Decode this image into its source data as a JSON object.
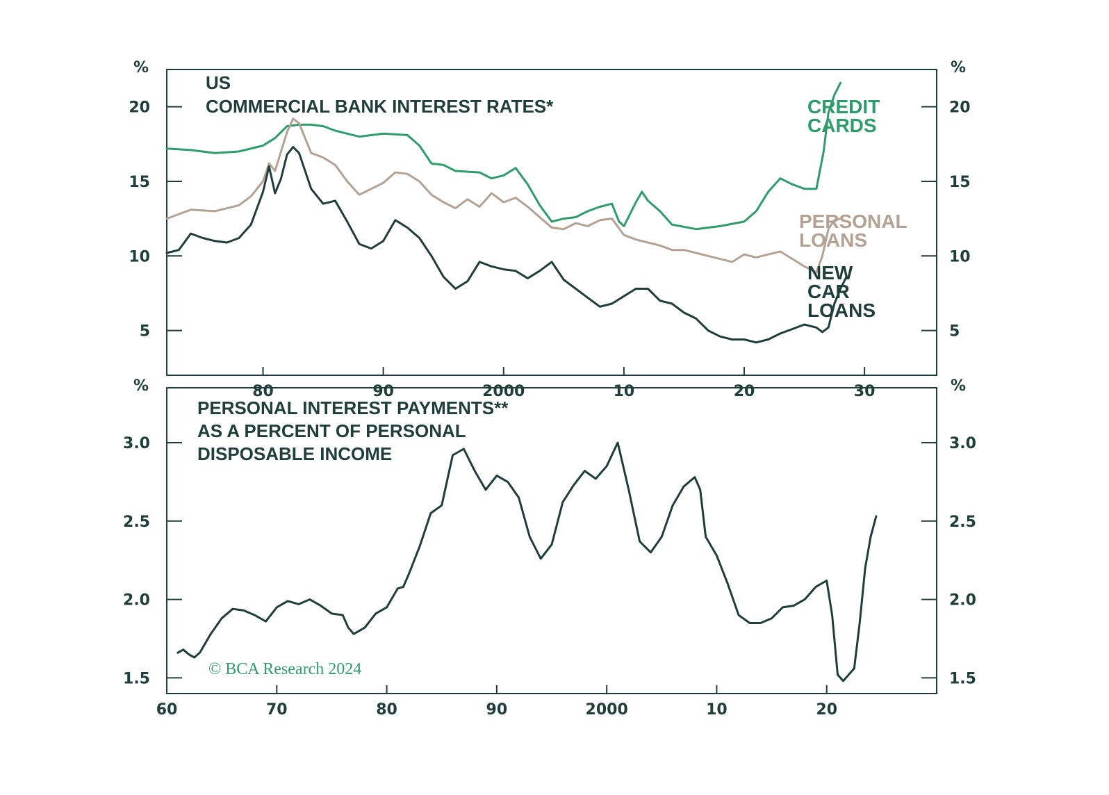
{
  "colors": {
    "ink": "#1f3d3a",
    "credit": "#2e9b6b",
    "personal": "#b3a293",
    "car": "#1f3d3a"
  },
  "credit_text": "© BCA Research 2024",
  "chart_data": [
    {
      "type": "line",
      "title_lines": [
        "US",
        "COMMERCIAL BANK INTEREST RATES*"
      ],
      "unit": "%",
      "ylim": [
        2,
        22.5
      ],
      "yticks": [
        5,
        10,
        15,
        20
      ],
      "xlim": [
        1972,
        2036
      ],
      "xtick_positions": [
        1980,
        1990,
        2000,
        2010,
        2020,
        2030
      ],
      "xtick_labels": [
        "80",
        "90",
        "2000",
        "10",
        "20",
        "30"
      ],
      "series": [
        {
          "name": "CREDIT CARDS",
          "label_lines": [
            "CREDIT",
            "CARDS"
          ],
          "color_key": "credit",
          "points": [
            [
              1972,
              17.2
            ],
            [
              1974,
              17.1
            ],
            [
              1976,
              16.9
            ],
            [
              1978,
              17.0
            ],
            [
              1980,
              17.4
            ],
            [
              1981,
              17.9
            ],
            [
              1982,
              18.7
            ],
            [
              1983,
              18.8
            ],
            [
              1984,
              18.8
            ],
            [
              1985,
              18.7
            ],
            [
              1986,
              18.4
            ],
            [
              1988,
              18.0
            ],
            [
              1990,
              18.2
            ],
            [
              1992,
              18.1
            ],
            [
              1993,
              17.4
            ],
            [
              1994,
              16.2
            ],
            [
              1995,
              16.1
            ],
            [
              1996,
              15.7
            ],
            [
              1998,
              15.6
            ],
            [
              1999,
              15.2
            ],
            [
              2000,
              15.4
            ],
            [
              2001,
              15.9
            ],
            [
              2002,
              14.8
            ],
            [
              2003,
              13.4
            ],
            [
              2004,
              12.3
            ],
            [
              2005,
              12.5
            ],
            [
              2006,
              12.6
            ],
            [
              2007,
              13.0
            ],
            [
              2008,
              13.3
            ],
            [
              2009,
              13.5
            ],
            [
              2009.6,
              12.3
            ],
            [
              2010,
              12.0
            ],
            [
              2011,
              13.6
            ],
            [
              2011.5,
              14.3
            ],
            [
              2012,
              13.7
            ],
            [
              2013,
              13.0
            ],
            [
              2014,
              12.1
            ],
            [
              2016,
              11.8
            ],
            [
              2018,
              12.0
            ],
            [
              2020,
              12.3
            ],
            [
              2021,
              13.0
            ],
            [
              2022,
              14.3
            ],
            [
              2023,
              15.2
            ],
            [
              2024,
              14.8
            ],
            [
              2025,
              14.5
            ],
            [
              2026,
              14.5
            ],
            [
              2026.6,
              17.0
            ],
            [
              2027,
              19.6
            ],
            [
              2027.5,
              20.8
            ],
            [
              2028,
              21.6
            ]
          ]
        },
        {
          "name": "PERSONAL LOANS",
          "label_lines": [
            "PERSONAL",
            "LOANS"
          ],
          "color_key": "personal",
          "points": [
            [
              1972,
              12.5
            ],
            [
              1974,
              13.1
            ],
            [
              1976,
              13.0
            ],
            [
              1978,
              13.4
            ],
            [
              1979,
              14.0
            ],
            [
              1980,
              15.0
            ],
            [
              1980.5,
              16.2
            ],
            [
              1981,
              15.7
            ],
            [
              1982,
              18.3
            ],
            [
              1982.5,
              19.2
            ],
            [
              1983,
              18.9
            ],
            [
              1984,
              16.9
            ],
            [
              1985,
              16.6
            ],
            [
              1986,
              16.1
            ],
            [
              1987,
              15.0
            ],
            [
              1988,
              14.1
            ],
            [
              1989,
              14.5
            ],
            [
              1990,
              14.9
            ],
            [
              1991,
              15.6
            ],
            [
              1992,
              15.5
            ],
            [
              1993,
              15.0
            ],
            [
              1994,
              14.1
            ],
            [
              1995,
              13.6
            ],
            [
              1996,
              13.2
            ],
            [
              1997,
              13.8
            ],
            [
              1998,
              13.3
            ],
            [
              1999,
              14.2
            ],
            [
              2000,
              13.6
            ],
            [
              2001,
              13.9
            ],
            [
              2002,
              13.3
            ],
            [
              2003,
              12.6
            ],
            [
              2004,
              11.9
            ],
            [
              2005,
              11.8
            ],
            [
              2006,
              12.2
            ],
            [
              2007,
              12.0
            ],
            [
              2008,
              12.4
            ],
            [
              2009,
              12.5
            ],
            [
              2010,
              11.4
            ],
            [
              2011,
              11.1
            ],
            [
              2012,
              10.9
            ],
            [
              2013,
              10.7
            ],
            [
              2014,
              10.4
            ],
            [
              2015,
              10.4
            ],
            [
              2016,
              10.2
            ],
            [
              2017,
              10.0
            ],
            [
              2018,
              9.8
            ],
            [
              2019,
              9.6
            ],
            [
              2020,
              10.1
            ],
            [
              2021,
              9.9
            ],
            [
              2022,
              10.1
            ],
            [
              2023,
              10.3
            ],
            [
              2024,
              9.8
            ],
            [
              2025,
              9.3
            ],
            [
              2026,
              8.9
            ],
            [
              2026.5,
              10.0
            ],
            [
              2027,
              11.8
            ],
            [
              2027.5,
              12.4
            ],
            [
              2028,
              12.5
            ]
          ]
        },
        {
          "name": "NEW CAR LOANS",
          "label_lines": [
            "NEW",
            "CAR",
            "LOANS"
          ],
          "color_key": "car",
          "points": [
            [
              1972,
              10.2
            ],
            [
              1973,
              10.4
            ],
            [
              1974,
              11.5
            ],
            [
              1975,
              11.2
            ],
            [
              1976,
              11.0
            ],
            [
              1977,
              10.9
            ],
            [
              1978,
              11.2
            ],
            [
              1979,
              12.1
            ],
            [
              1980,
              14.3
            ],
            [
              1980.5,
              16.0
            ],
            [
              1981,
              14.2
            ],
            [
              1981.5,
              15.2
            ],
            [
              1982,
              16.8
            ],
            [
              1982.5,
              17.3
            ],
            [
              1983,
              16.9
            ],
            [
              1984,
              14.5
            ],
            [
              1985,
              13.5
            ],
            [
              1986,
              13.7
            ],
            [
              1987,
              12.3
            ],
            [
              1988,
              10.8
            ],
            [
              1989,
              10.5
            ],
            [
              1990,
              11.0
            ],
            [
              1991,
              12.4
            ],
            [
              1992,
              11.9
            ],
            [
              1993,
              11.2
            ],
            [
              1994,
              10.0
            ],
            [
              1995,
              8.6
            ],
            [
              1996,
              7.8
            ],
            [
              1997,
              8.3
            ],
            [
              1998,
              9.6
            ],
            [
              1999,
              9.3
            ],
            [
              2000,
              9.1
            ],
            [
              2001,
              9.0
            ],
            [
              2002,
              8.5
            ],
            [
              2003,
              9.0
            ],
            [
              2004,
              9.6
            ],
            [
              2005,
              8.4
            ],
            [
              2006,
              7.8
            ],
            [
              2007,
              7.2
            ],
            [
              2008,
              6.6
            ],
            [
              2009,
              6.8
            ],
            [
              2010,
              7.3
            ],
            [
              2011,
              7.8
            ],
            [
              2012,
              7.8
            ],
            [
              2013,
              7.0
            ],
            [
              2014,
              6.8
            ],
            [
              2015,
              6.2
            ],
            [
              2016,
              5.8
            ],
            [
              2017,
              5.0
            ],
            [
              2018,
              4.6
            ],
            [
              2019,
              4.4
            ],
            [
              2020,
              4.4
            ],
            [
              2021,
              4.2
            ],
            [
              2022,
              4.4
            ],
            [
              2023,
              4.8
            ],
            [
              2024,
              5.1
            ],
            [
              2025,
              5.4
            ],
            [
              2026,
              5.2
            ],
            [
              2026.5,
              4.9
            ],
            [
              2027,
              5.2
            ],
            [
              2027.5,
              6.8
            ],
            [
              2028,
              7.8
            ],
            [
              2028.5,
              8.6
            ]
          ]
        }
      ]
    },
    {
      "type": "line",
      "title_lines": [
        "PERSONAL INTEREST PAYMENTS**",
        "AS A PERCENT OF PERSONAL",
        "DISPOSABLE INCOME"
      ],
      "unit": "%",
      "ylim": [
        1.4,
        3.35
      ],
      "yticks": [
        1.5,
        2.0,
        2.5,
        3.0
      ],
      "ytick_labels": [
        "1.5",
        "2.0",
        "2.5",
        "3.0"
      ],
      "xlim": [
        1960,
        2030
      ],
      "xtick_positions": [
        1960,
        1970,
        1980,
        1990,
        2000,
        2010,
        2020
      ],
      "xtick_labels": [
        "60",
        "70",
        "80",
        "90",
        "2000",
        "10",
        "20"
      ],
      "series": [
        {
          "name": "Personal interest payments",
          "color_key": "ink",
          "points": [
            [
              1961,
              1.66
            ],
            [
              1961.5,
              1.68
            ],
            [
              1962,
              1.65
            ],
            [
              1962.5,
              1.63
            ],
            [
              1963,
              1.66
            ],
            [
              1964,
              1.78
            ],
            [
              1965,
              1.88
            ],
            [
              1966,
              1.94
            ],
            [
              1967,
              1.93
            ],
            [
              1968,
              1.9
            ],
            [
              1969,
              1.86
            ],
            [
              1970,
              1.95
            ],
            [
              1971,
              1.99
            ],
            [
              1972,
              1.97
            ],
            [
              1973,
              2.0
            ],
            [
              1974,
              1.96
            ],
            [
              1975,
              1.91
            ],
            [
              1976,
              1.9
            ],
            [
              1976.5,
              1.82
            ],
            [
              1977,
              1.78
            ],
            [
              1978,
              1.82
            ],
            [
              1979,
              1.91
            ],
            [
              1980,
              1.95
            ],
            [
              1981,
              2.07
            ],
            [
              1981.5,
              2.08
            ],
            [
              1982,
              2.16
            ],
            [
              1983,
              2.34
            ],
            [
              1984,
              2.55
            ],
            [
              1985,
              2.6
            ],
            [
              1986,
              2.92
            ],
            [
              1987,
              2.96
            ],
            [
              1988,
              2.82
            ],
            [
              1989,
              2.7
            ],
            [
              1990,
              2.79
            ],
            [
              1991,
              2.75
            ],
            [
              1992,
              2.65
            ],
            [
              1993,
              2.4
            ],
            [
              1994,
              2.26
            ],
            [
              1995,
              2.35
            ],
            [
              1996,
              2.62
            ],
            [
              1997,
              2.73
            ],
            [
              1998,
              2.82
            ],
            [
              1999,
              2.77
            ],
            [
              2000,
              2.85
            ],
            [
              2001,
              3.0
            ],
            [
              2002,
              2.7
            ],
            [
              2003,
              2.37
            ],
            [
              2004,
              2.3
            ],
            [
              2005,
              2.4
            ],
            [
              2006,
              2.6
            ],
            [
              2007,
              2.72
            ],
            [
              2008,
              2.78
            ],
            [
              2008.5,
              2.7
            ],
            [
              2009,
              2.4
            ],
            [
              2010,
              2.28
            ],
            [
              2011,
              2.1
            ],
            [
              2012,
              1.9
            ],
            [
              2013,
              1.85
            ],
            [
              2014,
              1.85
            ],
            [
              2015,
              1.88
            ],
            [
              2016,
              1.95
            ],
            [
              2017,
              1.96
            ],
            [
              2018,
              2.0
            ],
            [
              2019,
              2.08
            ],
            [
              2020,
              2.12
            ],
            [
              2020.5,
              1.9
            ],
            [
              2021,
              1.52
            ],
            [
              2021.5,
              1.48
            ],
            [
              2022,
              1.52
            ],
            [
              2022.5,
              1.56
            ],
            [
              2023,
              1.85
            ],
            [
              2023.5,
              2.2
            ],
            [
              2024,
              2.4
            ],
            [
              2024.5,
              2.53
            ]
          ]
        }
      ]
    }
  ]
}
